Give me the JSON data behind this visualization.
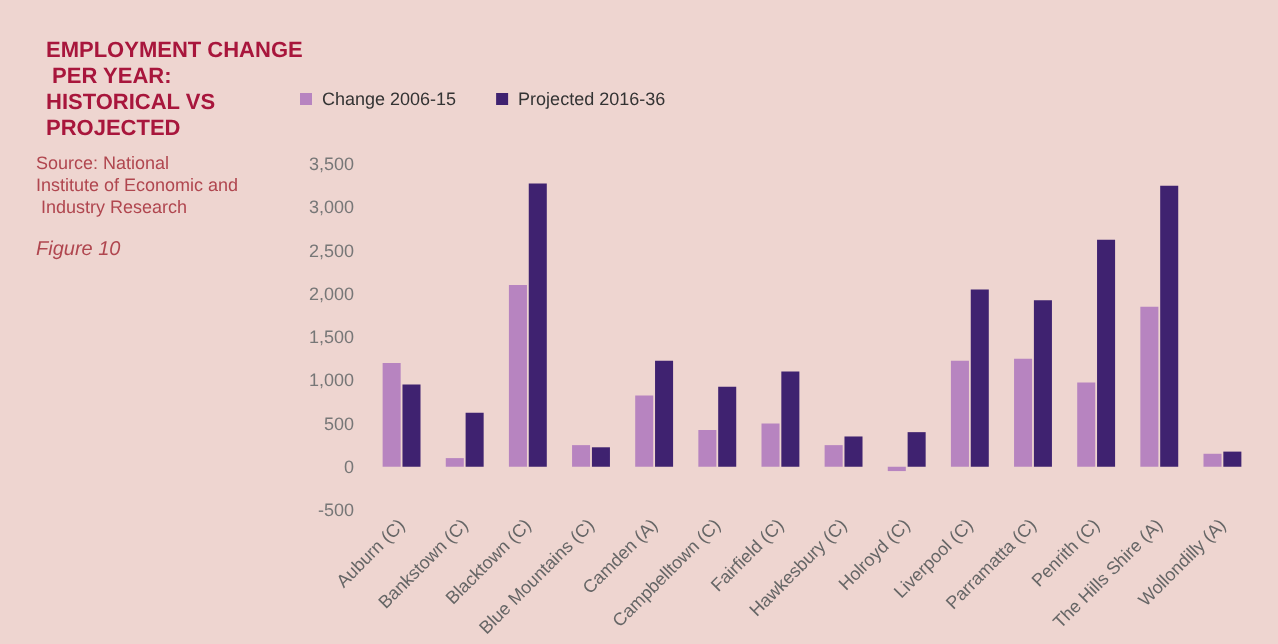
{
  "chart_data": {
    "type": "bar",
    "title": "EMPLOYMENT CHANGE PER YEAR: HISTORICAL VS PROJECTED",
    "annotations": [
      "Source: National Institute of Economic and Industry Research",
      "Figure 10"
    ],
    "categories": [
      "Auburn (C)",
      "Bankstown (C)",
      "Blacktown (C)",
      "Blue Mountains (C)",
      "Camden (A)",
      "Campbelltown (C)",
      "Fairfield (C)",
      "Hawkesbury (C)",
      "Holroyd (C)",
      "Liverpool (C)",
      "Parramatta (C)",
      "Penrith (C)",
      "The Hills Shire (A)",
      "Wollondilly (A)"
    ],
    "series": [
      {
        "name": "Change 2006-15",
        "color": "#b784c0",
        "values": [
          1200,
          100,
          2100,
          250,
          825,
          425,
          500,
          250,
          -50,
          1225,
          1250,
          975,
          1850,
          150
        ]
      },
      {
        "name": "Projected 2016-36",
        "color": "#3f2270",
        "values": [
          950,
          625,
          3275,
          225,
          1225,
          925,
          1100,
          350,
          400,
          2050,
          1925,
          2625,
          3250,
          175
        ]
      }
    ],
    "ylim": [
      -500,
      3500
    ],
    "yticks": [
      -500,
      0,
      {
        "value": 500,
        "label": "500"
      },
      {
        "value": 1000,
        "label": "1,000"
      },
      {
        "value": 1500,
        "label": "1,500"
      },
      {
        "value": 2000,
        "label": "2,000"
      },
      {
        "value": 2500,
        "label": "2,500"
      },
      {
        "value": 3000,
        "label": "3,000"
      },
      {
        "value": 3500,
        "label": "3,500"
      }
    ],
    "grid": false,
    "legend": "top left"
  }
}
